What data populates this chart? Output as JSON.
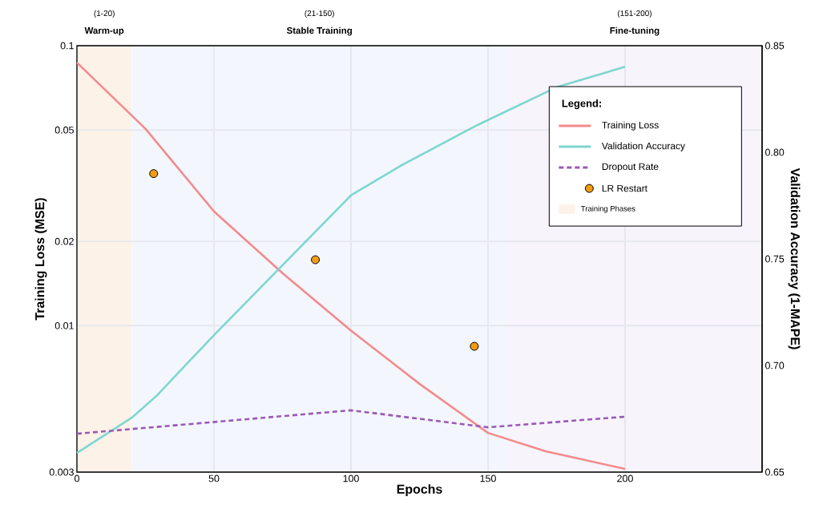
{
  "chart_data": {
    "type": "line",
    "xlabel": "Epochs",
    "ylabel": "Training Loss (MSE)",
    "y2label": "Validation Accuracy (1-MAPE)",
    "legend_title": "Legend:",
    "xlim": [
      0,
      250
    ],
    "xticks": [
      0,
      50,
      100,
      150,
      200
    ],
    "ylim": [
      0.003,
      0.1
    ],
    "yticks": [
      0.003,
      0.01,
      0.02,
      0.05,
      0.1
    ],
    "log": true,
    "y2lim": [
      0.65,
      0.85
    ],
    "y2ticks": [
      0.65,
      {
        "value": 0.7,
        "label": "0.70"
      },
      0.75,
      {
        "value": 0.8,
        "label": "0.80"
      },
      0.85
    ],
    "grid": true,
    "legend": "top right",
    "series": [
      {
        "name": "Training Loss",
        "color": "#f48a8c",
        "axis": "y",
        "line_style": "solid",
        "x": [
          0,
          25,
          50,
          75,
          100,
          125,
          150,
          171,
          200
        ],
        "values": [
          0.087,
          0.0505,
          0.0256,
          0.0154,
          0.0096,
          0.0062,
          0.00414,
          0.00356,
          0.00308
        ]
      },
      {
        "name": "Validation Accuracy",
        "color": "#7fd6d1",
        "axis": "y2",
        "line_style": "solid",
        "x": [
          0,
          20,
          29,
          40,
          50,
          75,
          100,
          118,
          146,
          175,
          200
        ],
        "values": [
          0.659,
          0.6755,
          0.6857,
          0.7007,
          0.7142,
          0.747,
          0.7798,
          0.7936,
          0.8127,
          0.8305,
          0.8401
        ]
      },
      {
        "name": "Dropout Rate",
        "color": "#9b59b6",
        "axis": "y2",
        "line_style": "dashed",
        "x": [
          0,
          100,
          150,
          200
        ],
        "values": [
          0.668,
          0.679,
          0.671,
          0.676
        ]
      },
      {
        "name": "LR Restart",
        "type": "scatter",
        "color": "#f39c12",
        "axis": "y2",
        "marker": "circle",
        "x": [
          28,
          87,
          145
        ],
        "values": [
          0.79,
          0.7496,
          0.709
        ]
      }
    ],
    "bands": [
      {
        "axis": "x",
        "from": 0,
        "to": 20,
        "label": "Warm-up",
        "color": "#fdf2e8"
      },
      {
        "axis": "x",
        "from": 20,
        "to": 157,
        "label": "Stable Training",
        "color": "#f3f7fd"
      },
      {
        "axis": "x",
        "from": 157,
        "to": 250,
        "label": "Fine-tuning",
        "color": "#f7f4fc"
      }
    ],
    "annotations": [
      "(1-20)",
      "(21-150)",
      "(151-200)",
      "Training Phases"
    ]
  }
}
